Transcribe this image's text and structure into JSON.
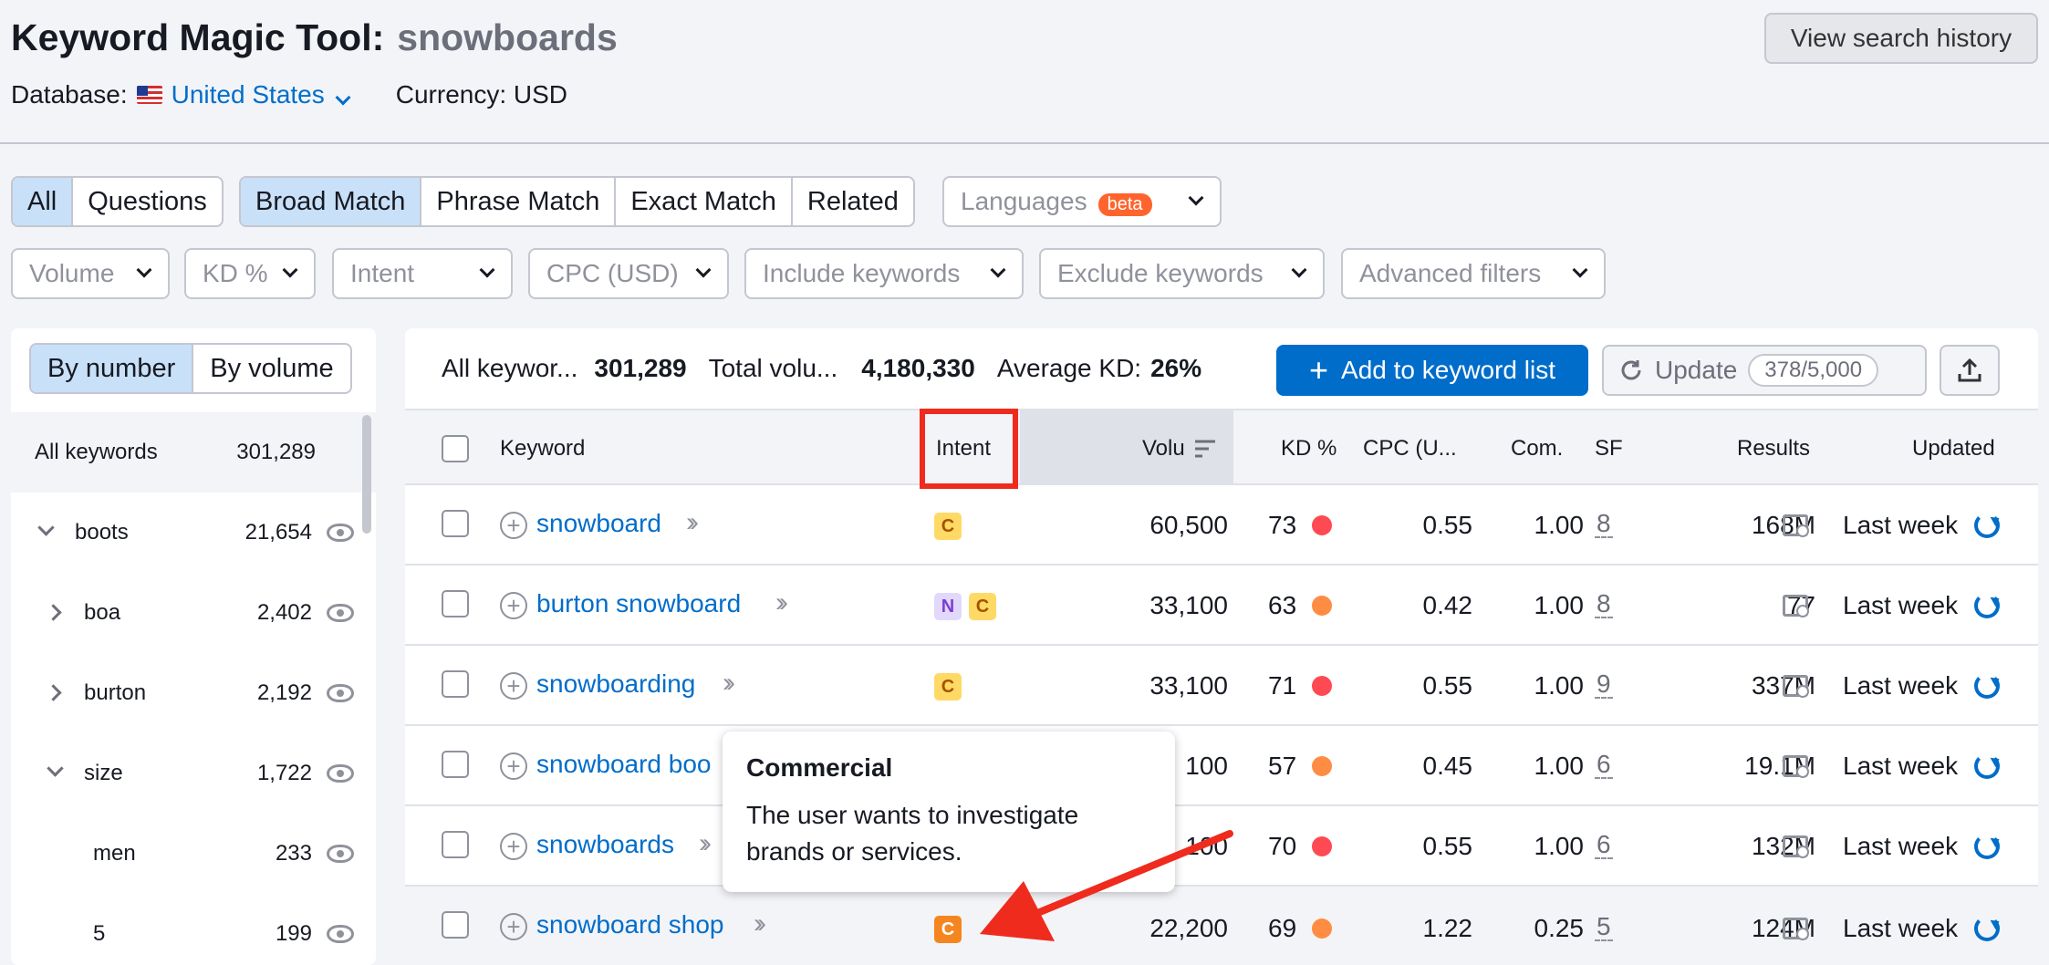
{
  "header": {
    "title": "Keyword Magic Tool:",
    "query": "snowboards",
    "database_label": "Database:",
    "database_value": "United States",
    "currency": "Currency: USD",
    "history_button": "View search history"
  },
  "filters": {
    "type_tabs": [
      "All",
      "Questions"
    ],
    "match_tabs": [
      "Broad Match",
      "Phrase Match",
      "Exact Match",
      "Related"
    ],
    "languages": "Languages",
    "beta": "beta",
    "dropdowns": [
      "Volume",
      "KD %",
      "Intent",
      "CPC (USD)",
      "Include keywords",
      "Exclude keywords",
      "Advanced filters"
    ]
  },
  "left_panel": {
    "sort_tabs": [
      "By number",
      "By volume"
    ],
    "all_label": "All keywords",
    "all_count": "301,289",
    "groups": [
      {
        "name": "boots",
        "count": "21,654",
        "state": "expanded"
      },
      {
        "name": "boa",
        "count": "2,402",
        "state": "collapsed"
      },
      {
        "name": "burton",
        "count": "2,192",
        "state": "collapsed"
      },
      {
        "name": "size",
        "count": "1,722",
        "state": "expanded"
      },
      {
        "name": "men",
        "count": "233",
        "state": "leaf"
      },
      {
        "name": "5",
        "count": "199",
        "state": "leaf"
      }
    ]
  },
  "summary": {
    "all_keywords_label": "All keywor...",
    "all_keywords_value": "301,289",
    "total_volume_label": "Total volu...",
    "total_volume_value": "4,180,330",
    "avg_kd_label": "Average KD:",
    "avg_kd_value": "26%",
    "add_button": "Add to keyword list",
    "update_button": "Update",
    "update_quota": "378/5,000"
  },
  "table": {
    "columns": [
      "Keyword",
      "Intent",
      "Volu",
      "KD %",
      "CPC (U...",
      "Com.",
      "SF",
      "Results",
      "Updated"
    ],
    "rows": [
      {
        "keyword": "snowboard",
        "intent": [
          "C"
        ],
        "volume": "60,500",
        "kd": "73",
        "kd_color": "#ff4953",
        "cpc": "0.55",
        "com": "1.00",
        "sf": "8",
        "results": "168M",
        "updated": "Last week"
      },
      {
        "keyword": "burton snowboard",
        "intent": [
          "N",
          "C"
        ],
        "volume": "33,100",
        "kd": "63",
        "kd_color": "#ff8c43",
        "cpc": "0.42",
        "com": "1.00",
        "sf": "8",
        "results": "77",
        "updated": "Last week"
      },
      {
        "keyword": "snowboarding",
        "intent": [
          "C"
        ],
        "volume": "33,100",
        "kd": "71",
        "kd_color": "#ff4953",
        "cpc": "0.55",
        "com": "1.00",
        "sf": "9",
        "results": "337M",
        "updated": "Last week"
      },
      {
        "keyword": "snowboard boo",
        "intent": [],
        "volume": "100",
        "kd": "57",
        "kd_color": "#ff8c43",
        "cpc": "0.45",
        "com": "1.00",
        "sf": "6",
        "results": "19.1M",
        "updated": "Last week"
      },
      {
        "keyword": "snowboards",
        "intent": [],
        "volume": "100",
        "kd": "70",
        "kd_color": "#ff4953",
        "cpc": "0.55",
        "com": "1.00",
        "sf": "6",
        "results": "132M",
        "updated": "Last week"
      },
      {
        "keyword": "snowboard shop",
        "intent": [
          "C"
        ],
        "volume": "22,200",
        "kd": "69",
        "kd_color": "#ff8c43",
        "cpc": "1.22",
        "com": "0.25",
        "sf": "5",
        "results": "124M",
        "updated": "Last week"
      }
    ]
  },
  "tooltip": {
    "title": "Commercial",
    "body": "The user wants to investigate brands or services."
  },
  "colors": {
    "accent": "#006dca",
    "annotation_red": "#ef2b1e",
    "kd_red": "#ff4953",
    "kd_orange": "#ff8c43"
  }
}
